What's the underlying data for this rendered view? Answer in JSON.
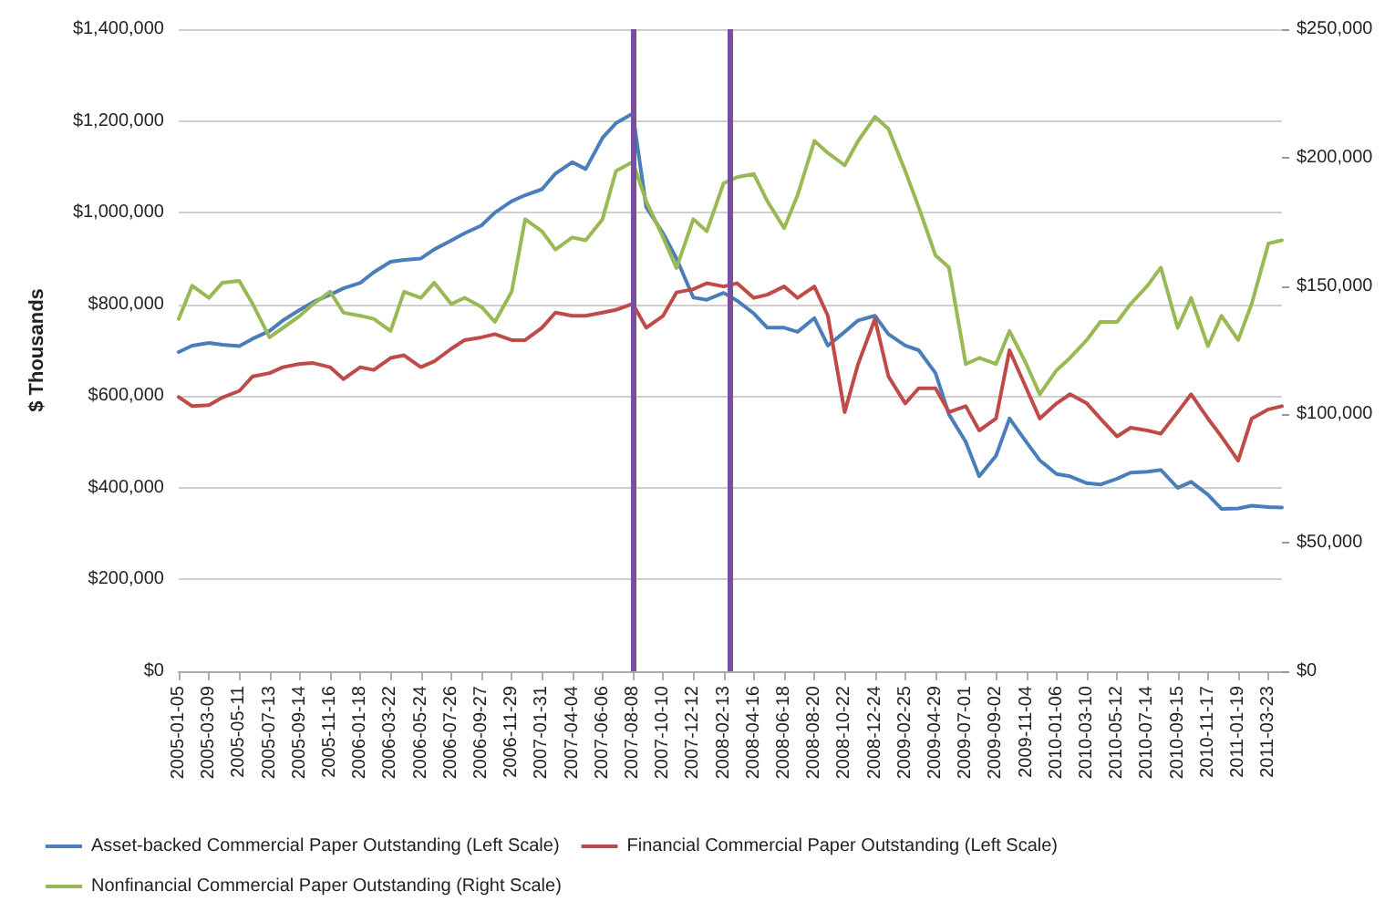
{
  "chart_data": {
    "type": "line",
    "ylabel": "$ Thousands",
    "x": [
      "2005-01-05",
      "2005-02-02",
      "2005-03-09",
      "2005-04-06",
      "2005-05-11",
      "2005-06-08",
      "2005-07-13",
      "2005-08-10",
      "2005-09-14",
      "2005-10-12",
      "2005-11-16",
      "2005-12-14",
      "2006-01-18",
      "2006-02-15",
      "2006-03-22",
      "2006-04-19",
      "2006-05-24",
      "2006-06-21",
      "2006-07-26",
      "2006-08-23",
      "2006-09-27",
      "2006-10-25",
      "2006-11-29",
      "2006-12-27",
      "2007-01-31",
      "2007-02-28",
      "2007-04-04",
      "2007-05-02",
      "2007-06-06",
      "2007-07-04",
      "2007-08-08",
      "2007-09-05",
      "2007-10-10",
      "2007-11-07",
      "2007-12-12",
      "2008-01-09",
      "2008-02-13",
      "2008-03-12",
      "2008-04-16",
      "2008-05-14",
      "2008-06-18",
      "2008-07-16",
      "2008-08-20",
      "2008-09-17",
      "2008-10-22",
      "2008-11-19",
      "2008-12-24",
      "2009-01-21",
      "2009-02-25",
      "2009-03-25",
      "2009-04-29",
      "2009-05-27",
      "2009-07-01",
      "2009-07-29",
      "2009-09-02",
      "2009-09-30",
      "2009-11-04",
      "2009-12-02",
      "2010-01-06",
      "2010-02-03",
      "2010-03-10",
      "2010-04-07",
      "2010-05-12",
      "2010-06-09",
      "2010-07-14",
      "2010-08-11",
      "2010-09-15",
      "2010-10-13",
      "2010-11-17",
      "2010-12-15",
      "2011-01-19",
      "2011-02-16",
      "2011-03-23",
      "2011-04-20"
    ],
    "xlim": [
      "2005-01-05",
      "2011-04-20"
    ],
    "xticks": [
      "2005-01-05",
      "2005-03-09",
      "2005-05-11",
      "2005-07-13",
      "2005-09-14",
      "2005-11-16",
      "2006-01-18",
      "2006-03-22",
      "2006-05-24",
      "2006-07-26",
      "2006-09-27",
      "2006-11-29",
      "2007-01-31",
      "2007-04-04",
      "2007-06-06",
      "2007-08-08",
      "2007-10-10",
      "2007-12-12",
      "2008-02-13",
      "2008-04-16",
      "2008-06-18",
      "2008-08-20",
      "2008-10-22",
      "2008-12-24",
      "2009-02-25",
      "2009-04-29",
      "2009-07-01",
      "2009-09-02",
      "2009-11-04",
      "2010-01-06",
      "2010-03-10",
      "2010-05-12",
      "2010-07-14",
      "2010-09-15",
      "2010-11-17",
      "2011-01-19",
      "2011-03-23"
    ],
    "ylim": [
      0,
      1400000
    ],
    "yticks": [
      {
        "value": 0,
        "label": "$0"
      },
      {
        "value": 200000,
        "label": "$200,000"
      },
      {
        "value": 400000,
        "label": "$400,000"
      },
      {
        "value": 600000,
        "label": "$600,000"
      },
      {
        "value": 800000,
        "label": "$800,000"
      },
      {
        "value": 1000000,
        "label": "$1,000,000"
      },
      {
        "value": 1200000,
        "label": "$1,200,000"
      },
      {
        "value": 1400000,
        "label": "$1,400,000"
      }
    ],
    "y2lim": [
      0,
      250000
    ],
    "y2ticks": [
      {
        "value": 0,
        "label": "$0"
      },
      {
        "value": 50000,
        "label": "$50,000"
      },
      {
        "value": 100000,
        "label": "$100,000"
      },
      {
        "value": 150000,
        "label": "$150,000"
      },
      {
        "value": 200000,
        "label": "$200,000"
      },
      {
        "value": 250000,
        "label": "$250,000"
      }
    ],
    "grid": "y",
    "legend": "bottom",
    "marker": "none",
    "line_style": "solid",
    "ref_lines": [
      {
        "axis": "x",
        "value": "2007-08-08",
        "color": "#7b4fa0"
      },
      {
        "axis": "x",
        "value": "2008-02-27",
        "color": "#7b4fa0"
      }
    ],
    "series": [
      {
        "name": "Asset-backed Commercial Paper Outstanding (Left Scale)",
        "color": "#4a7ebb",
        "values": [
          696000,
          710000,
          716000,
          712000,
          709000,
          725000,
          742000,
          765000,
          788000,
          805000,
          821000,
          835000,
          847000,
          870000,
          893000,
          897000,
          900000,
          920000,
          939000,
          955000,
          972000,
          1000000,
          1025000,
          1038000,
          1051000,
          1085000,
          1110000,
          1095000,
          1163000,
          1195000,
          1216000,
          1012000,
          955000,
          900000,
          815000,
          810000,
          825000,
          808000,
          780000,
          749000,
          749000,
          740000,
          770000,
          710000,
          740000,
          765000,
          775000,
          735000,
          710000,
          700000,
          650000,
          560000,
          500000,
          425000,
          470000,
          551000,
          500000,
          460000,
          430000,
          425000,
          410000,
          407000,
          420000,
          433000,
          435000,
          439000,
          400000,
          413000,
          385000,
          354000,
          355000,
          361000,
          358000,
          357000
        ]
      },
      {
        "name": "Financial Commercial Paper Outstanding (Left Scale)",
        "color": "#be4b48",
        "values": [
          598000,
          578000,
          580000,
          597000,
          611000,
          643000,
          650000,
          663000,
          670000,
          672000,
          663000,
          637000,
          663000,
          657000,
          683000,
          689000,
          663000,
          676000,
          703000,
          722000,
          728000,
          735000,
          722000,
          722000,
          749000,
          782000,
          775000,
          775000,
          782000,
          788000,
          801000,
          749000,
          775000,
          826000,
          833000,
          846000,
          839000,
          846000,
          814000,
          821000,
          839000,
          814000,
          839000,
          775000,
          565000,
          670000,
          768000,
          643000,
          584000,
          617000,
          617000,
          565000,
          578000,
          525000,
          551000,
          700000,
          617000,
          551000,
          584000,
          604000,
          584000,
          551000,
          512000,
          531000,
          525000,
          518000,
          565000,
          604000,
          551000,
          512000,
          459000,
          551000,
          571000,
          578000
        ]
      },
      {
        "name": "Nonfinancial Commercial Paper Outstanding (Right Scale)",
        "color": "#98b954",
        "axis": "y2",
        "values": [
          137200,
          150100,
          145400,
          151300,
          152000,
          143000,
          130000,
          133700,
          138400,
          143000,
          147800,
          139600,
          138400,
          137200,
          132500,
          147800,
          145400,
          151300,
          143000,
          145400,
          141900,
          136000,
          147800,
          176000,
          171300,
          164200,
          168900,
          167800,
          176000,
          194800,
          198300,
          183000,
          169000,
          157000,
          176000,
          171300,
          190000,
          192400,
          193600,
          183000,
          172500,
          185400,
          206500,
          201800,
          197000,
          206500,
          215900,
          211200,
          194800,
          180700,
          161900,
          157200,
          119600,
          122000,
          119600,
          132500,
          119600,
          107800,
          117200,
          122000,
          129000,
          136000,
          136000,
          143000,
          150100,
          157200,
          133700,
          145400,
          126600,
          138400,
          129000,
          143000,
          166600,
          167800
        ]
      }
    ]
  }
}
